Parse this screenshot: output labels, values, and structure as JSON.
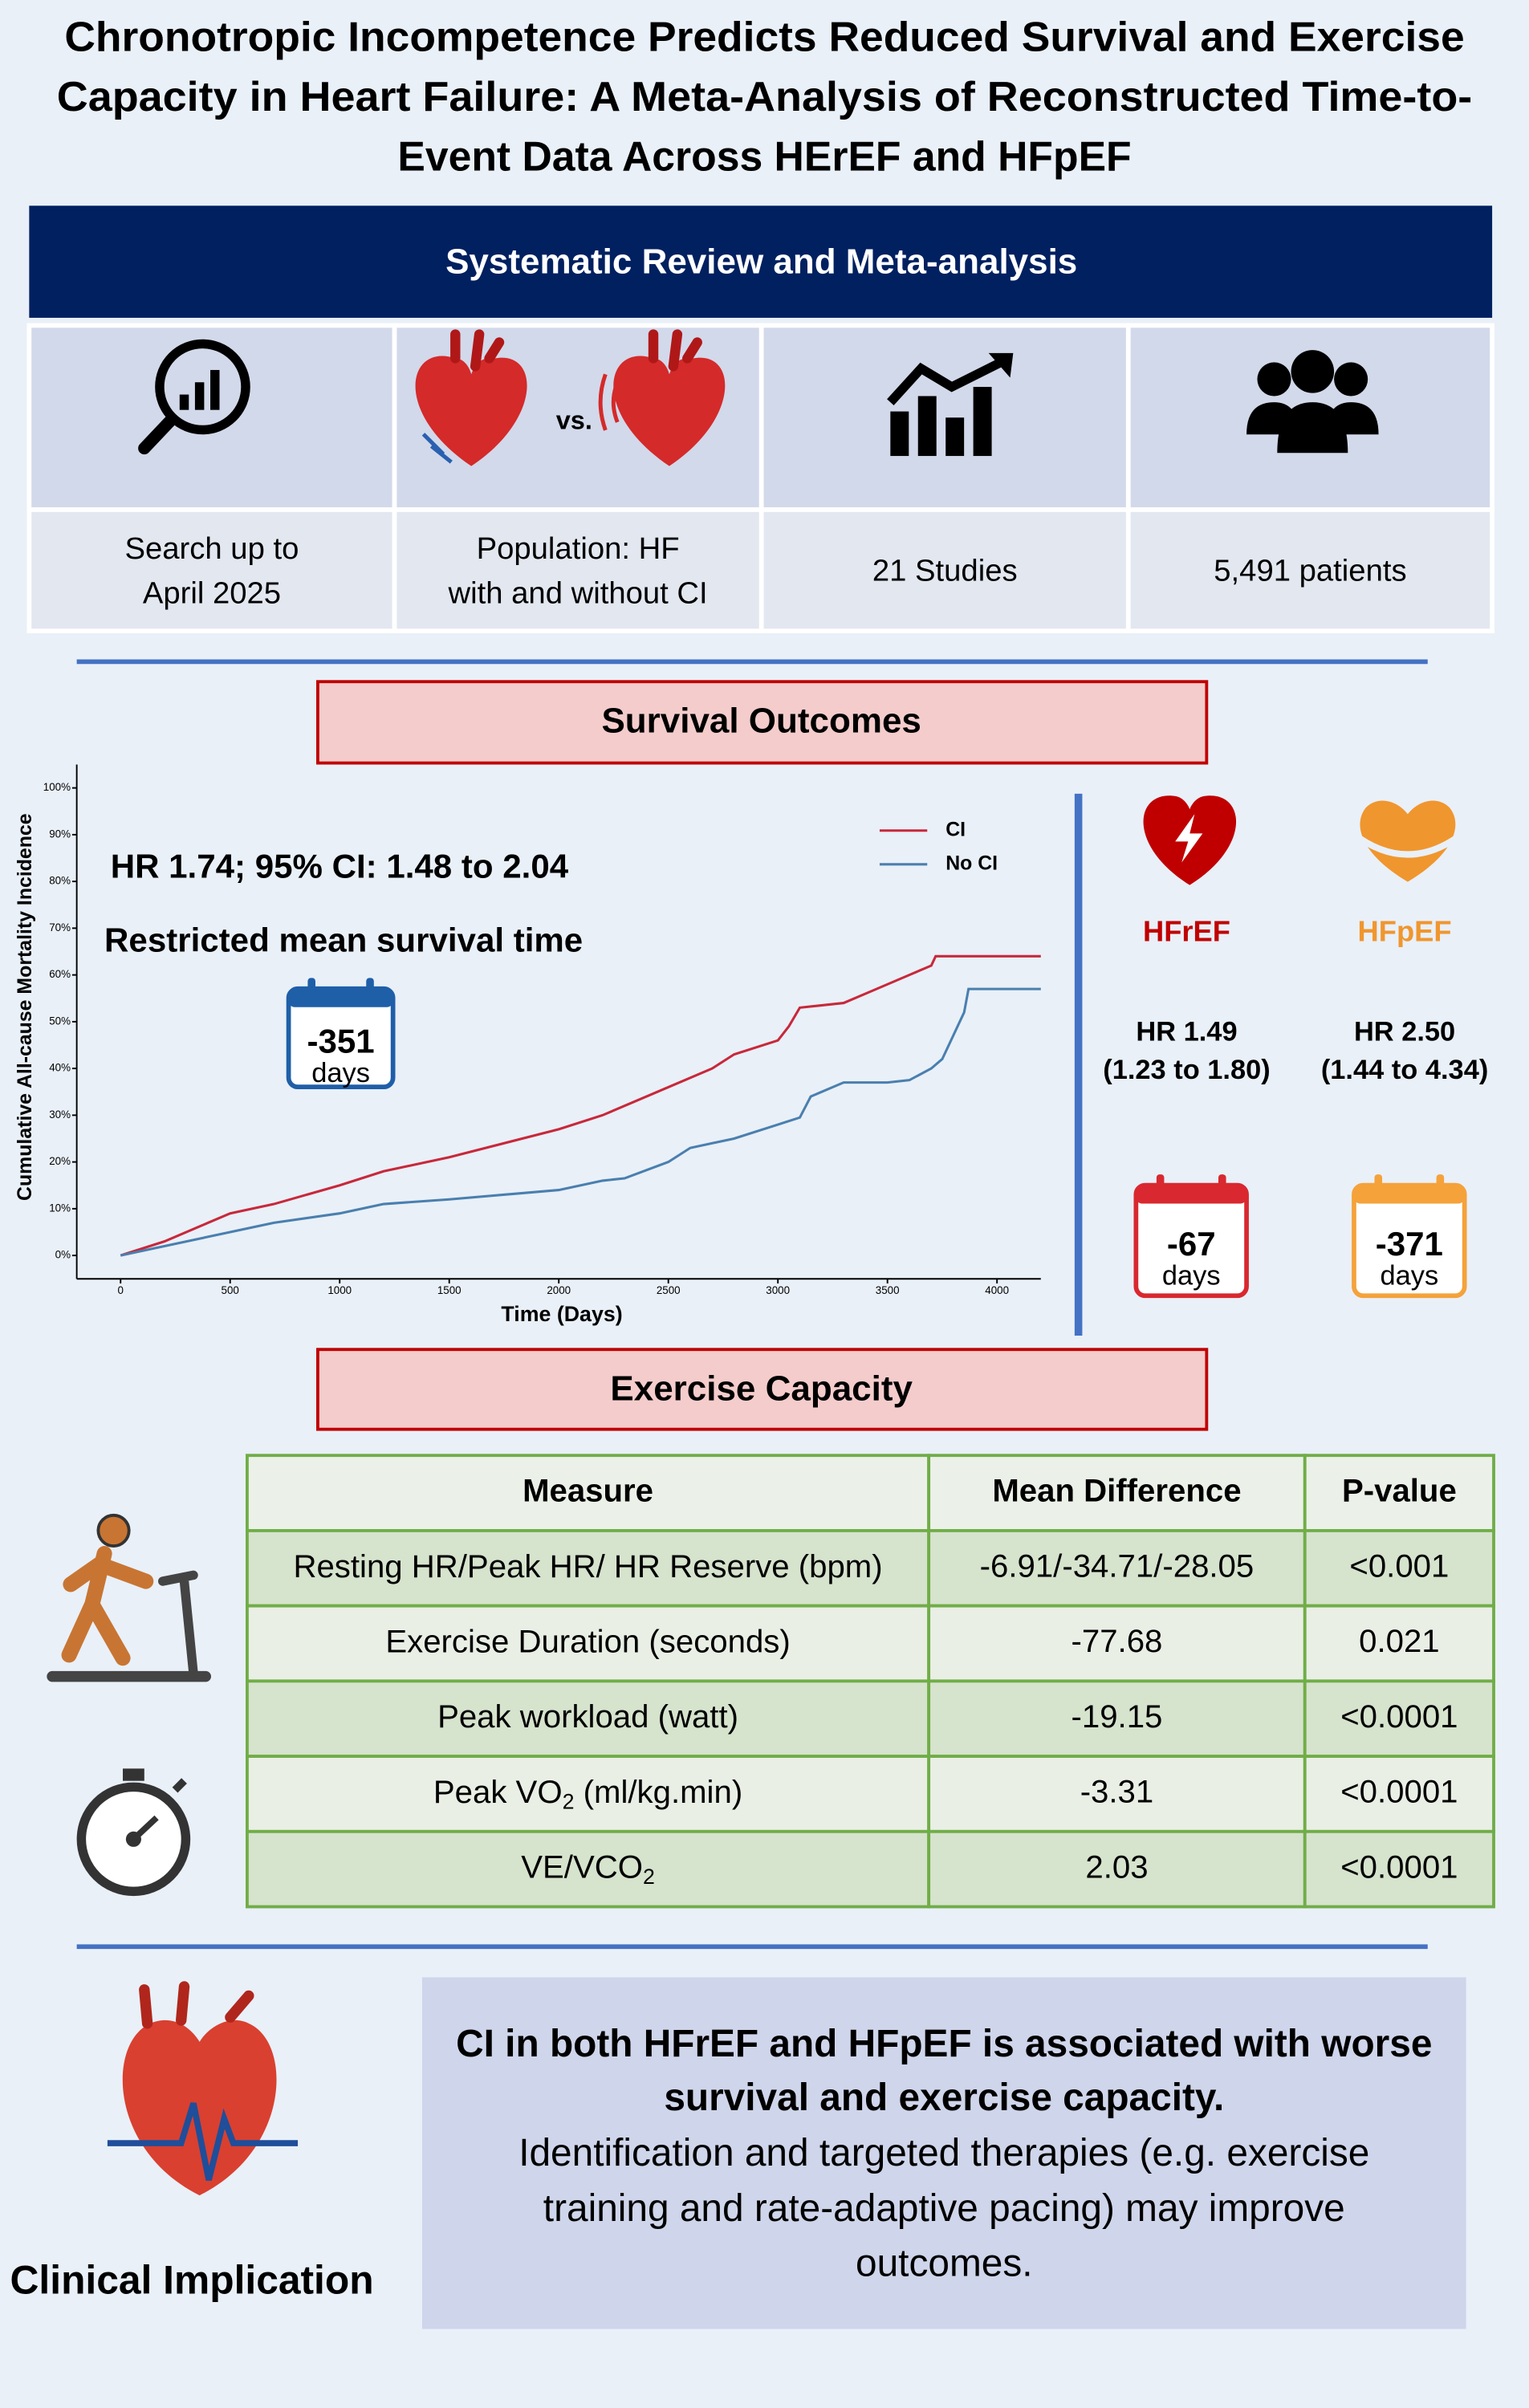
{
  "title_lines": [
    "Chronotropic Incompetence Predicts Reduced Survival and Exercise",
    "Capacity in Heart Failure: A Meta-Analysis of Reconstructed Time-to-",
    "Event Data Across HErEF and HFpEF"
  ],
  "design": {
    "header": "Systematic Review and Meta-analysis",
    "vs": "vs.",
    "items": [
      [
        "Search up to",
        "April 2025"
      ],
      [
        "Population: HF",
        "with and without CI"
      ],
      [
        "21 Studies"
      ],
      [
        "5,491 patients"
      ]
    ]
  },
  "survival": {
    "header": "Survival Outcomes",
    "hr": "HR 1.74; 95% CI: 1.48 to 2.04",
    "rmst_label": "Restricted mean survival time",
    "rmst": -351,
    "unit": "days",
    "subgroups": [
      {
        "name": "HFrEF",
        "color": "#c00000",
        "hr": "HR 1.49",
        "ci": "(1.23 to 1.80)",
        "rmst": -67,
        "unit": "days"
      },
      {
        "name": "HFpEF",
        "color": "#f0962e",
        "hr": "HR 2.50",
        "ci": "(1.44 to 4.34)",
        "rmst": -371,
        "unit": "days"
      }
    ]
  },
  "chart_data": {
    "type": "line",
    "xlabel": "Time (Days)",
    "ylabel": "Cumulative All-cause Mortality Incidence",
    "xlim": [
      -200,
      4200
    ],
    "ylim": [
      -5,
      105
    ],
    "xticks": [
      0,
      500,
      1000,
      1500,
      2000,
      2500,
      3000,
      3500,
      4000
    ],
    "yticks": [
      {
        "value": 0,
        "label": "0%"
      },
      {
        "value": 10,
        "label": "10%"
      },
      {
        "value": 20,
        "label": "20%"
      },
      {
        "value": 30,
        "label": "30%"
      },
      {
        "value": 40,
        "label": "40%"
      },
      {
        "value": 50,
        "label": "50%"
      },
      {
        "value": 60,
        "label": "60%"
      },
      {
        "value": 70,
        "label": "70%"
      },
      {
        "value": 80,
        "label": "80%"
      },
      {
        "value": 90,
        "label": "90%"
      },
      {
        "value": 100,
        "label": "100%"
      }
    ],
    "series": [
      {
        "name": "CI",
        "color": "#c8283a",
        "x": [
          0,
          200,
          400,
          500,
          700,
          1000,
          1200,
          1500,
          2000,
          2200,
          2500,
          2700,
          2800,
          3000,
          3050,
          3100,
          3300,
          3450,
          3600,
          3700,
          3720,
          4200
        ],
        "values": [
          0,
          3,
          7,
          9,
          11,
          15,
          18,
          21,
          27,
          30,
          36,
          40,
          43,
          46,
          49,
          53,
          54,
          57,
          60,
          62,
          64,
          64
        ]
      },
      {
        "name": "No CI",
        "color": "#4a7fae",
        "x": [
          0,
          200,
          500,
          700,
          1000,
          1200,
          1500,
          2000,
          2200,
          2300,
          2500,
          2600,
          2800,
          3000,
          3100,
          3150,
          3300,
          3500,
          3600,
          3700,
          3750,
          3800,
          3850,
          3870,
          4200
        ],
        "values": [
          0,
          2,
          5,
          7,
          9,
          11,
          12,
          14,
          16,
          16.5,
          20,
          23,
          25,
          28,
          29.5,
          34,
          37,
          37,
          37.5,
          40,
          42,
          47,
          52,
          57,
          57
        ]
      }
    ]
  },
  "exercise": {
    "header": "Exercise Capacity",
    "columns": [
      "Measure",
      "Mean Difference",
      "P-value"
    ],
    "rows": [
      [
        [
          "Resting HR/Peak HR/ HR Reserve (bpm)"
        ],
        "-6.91/-34.71/-28.05",
        "<0.001"
      ],
      [
        [
          "Exercise Duration (seconds)"
        ],
        -77.68,
        0.021
      ],
      [
        [
          "Peak workload (watt)"
        ],
        -19.15,
        "<0.0001"
      ],
      [
        [
          "Peak VO",
          "2",
          " (ml/kg.min)"
        ],
        -3.31,
        "<0.0001"
      ],
      [
        [
          "VE/VCO",
          "2"
        ],
        2.03,
        "<0.0001"
      ]
    ]
  },
  "conclusion": {
    "bold_lines": [
      "CI in both HFrEF and HFpEF is associated with worse",
      "survival and exercise capacity."
    ],
    "lines": [
      "Identification and targeted therapies (e.g. exercise",
      "training and rate-adaptive pacing) may improve",
      "outcomes."
    ]
  },
  "implication": "Clinical Implication"
}
